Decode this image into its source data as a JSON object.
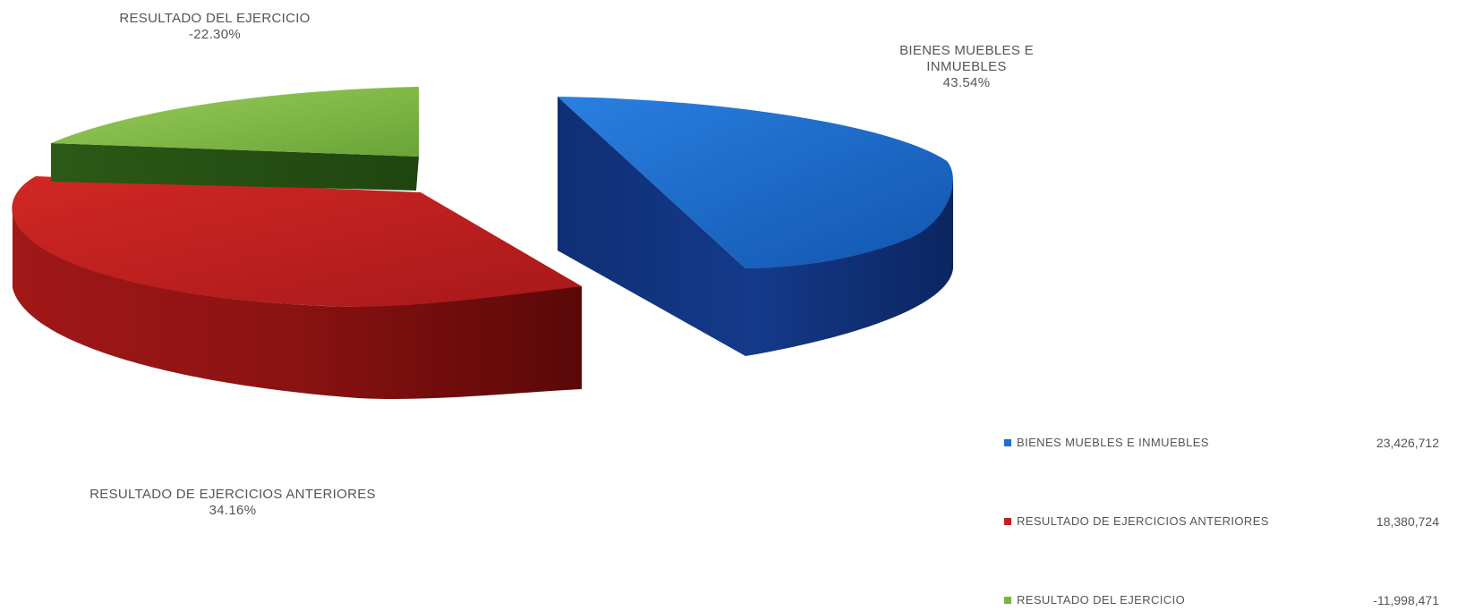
{
  "chart_data": {
    "type": "pie",
    "style": "3d-exploded",
    "slices": [
      {
        "name": "BIENES MUEBLES E INMUEBLES",
        "label_line1": "BIENES MUEBLES E",
        "label_line2": "INMUEBLES",
        "percent": "43.54%",
        "value": 23426712,
        "value_label": "23,426,712",
        "color": "#1f6fc8"
      },
      {
        "name": "RESULTADO DE EJERCICIOS ANTERIORES",
        "label_line1": "RESULTADO DE EJERCICIOS ANTERIORES",
        "label_line2": "",
        "percent": "34.16%",
        "value": 18380724,
        "value_label": "18,380,724",
        "color": "#c0201e"
      },
      {
        "name": "RESULTADO DEL EJERCICIO",
        "label_line1": "RESULTADO DEL EJERCICIO",
        "label_line2": "",
        "percent": "-22.30%",
        "value": -11998471,
        "value_label": "-11,998,471",
        "color": "#7db345"
      }
    ],
    "legend_position": "bottom-right"
  }
}
